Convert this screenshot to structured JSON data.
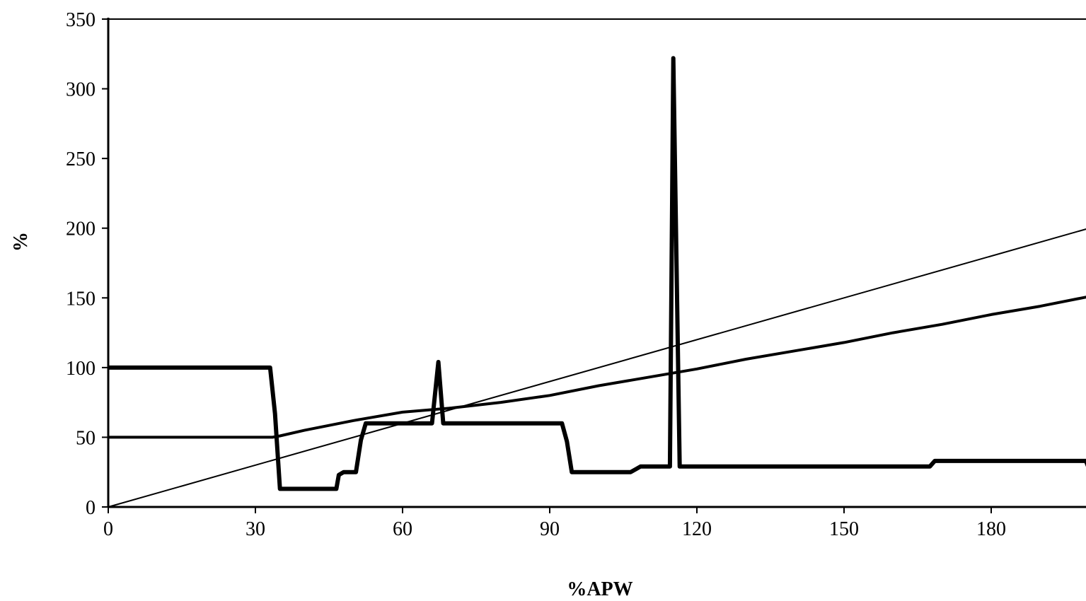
{
  "chart_data": {
    "type": "line",
    "title": "",
    "xlabel": "%APW",
    "ylabel": "%",
    "xlim": [
      0,
      200
    ],
    "ylim": [
      0,
      350
    ],
    "x_ticks": [
      0,
      30,
      60,
      90,
      120,
      150,
      180
    ],
    "y_ticks": [
      0,
      50,
      100,
      150,
      200,
      250,
      300,
      350
    ],
    "grid": false,
    "legend": "none",
    "series": [
      {
        "style": "thin",
        "color": "#000000",
        "x": [
          0,
          200
        ],
        "y": [
          0,
          200
        ]
      },
      {
        "style": "medium",
        "color": "#000000",
        "x": [
          0,
          33.5,
          35,
          40,
          50,
          60,
          70,
          80,
          90,
          100,
          110,
          120,
          130,
          140,
          150,
          160,
          170,
          180,
          190,
          200
        ],
        "y": [
          50,
          50,
          51,
          55,
          62,
          68,
          71,
          75,
          80,
          87,
          93,
          99,
          106,
          112,
          118,
          125,
          131,
          138,
          144,
          151
        ]
      },
      {
        "style": "thick",
        "color": "#000000",
        "x": [
          0,
          33,
          34,
          35,
          46.5,
          47,
          48,
          50.5,
          51.5,
          52.5,
          58,
          66,
          67.3,
          68.3,
          80,
          92.5,
          93.5,
          94.5,
          106.5,
          107.5,
          108.5,
          114.5,
          115.2,
          116.5,
          167.5,
          168.5,
          199.3,
          200
        ],
        "y": [
          100,
          100,
          67,
          13,
          13,
          23,
          25,
          25,
          48,
          60,
          60,
          60,
          104,
          60,
          60,
          60,
          47,
          25,
          25,
          27,
          29,
          29,
          322,
          29,
          29,
          33,
          33,
          27
        ]
      }
    ]
  }
}
